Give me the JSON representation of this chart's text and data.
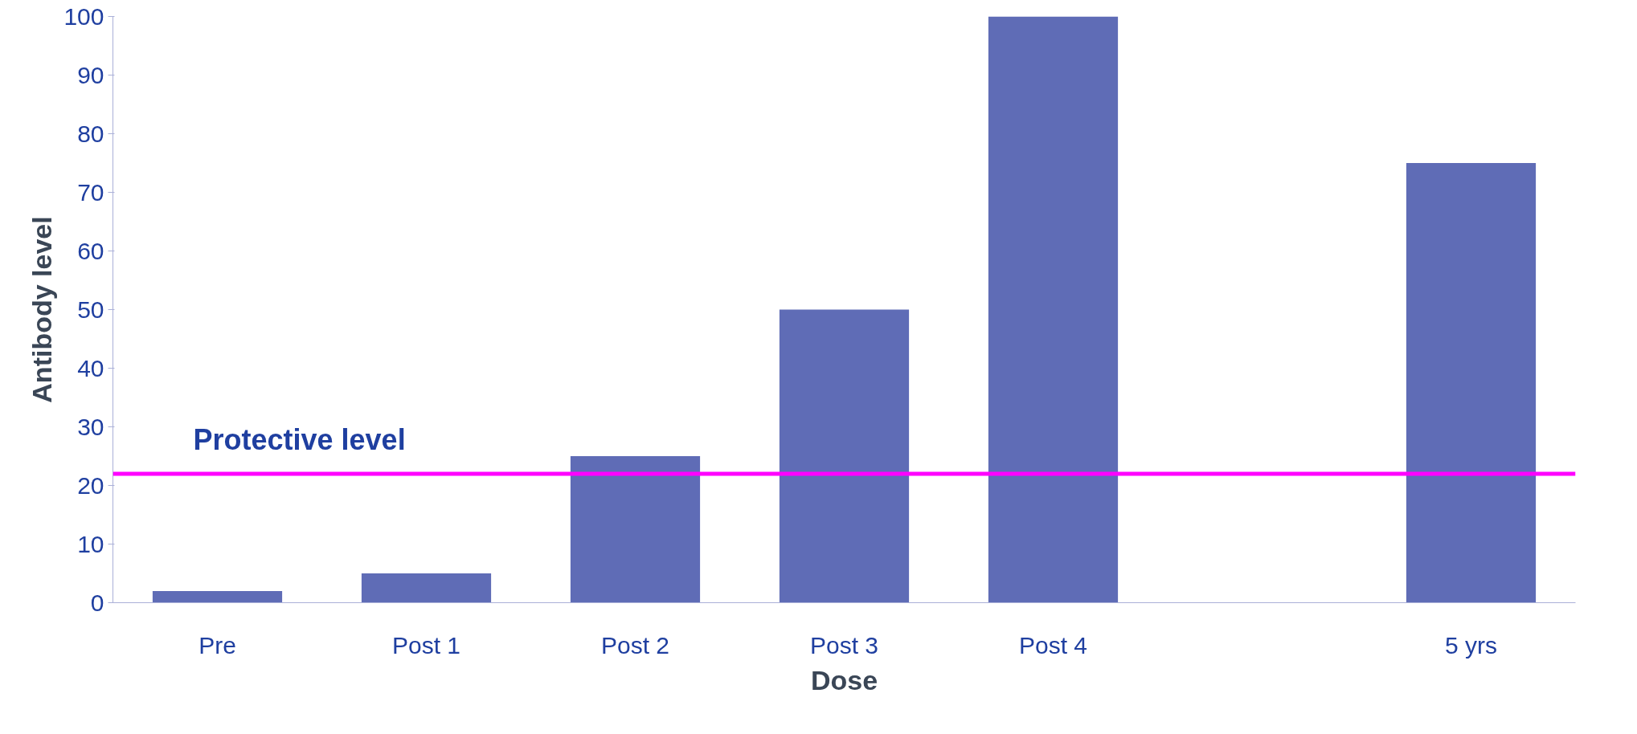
{
  "chart_data": {
    "type": "bar",
    "xlabel": "Dose",
    "ylabel": "Antibody level",
    "categories": [
      "Pre",
      "Post 1",
      "Post 2",
      "Post 3",
      "Post 4",
      null,
      "5 yrs"
    ],
    "values": [
      2,
      5,
      25,
      50,
      100,
      null,
      75
    ],
    "color": "#5f6cb6",
    "ylim": [
      0,
      100
    ],
    "yticks": [
      0,
      10,
      20,
      30,
      40,
      50,
      60,
      70,
      80,
      90,
      100
    ],
    "ref_lines": [
      {
        "axis": "y",
        "value": 22,
        "label": "Protective level",
        "color": "#ff00ff"
      }
    ],
    "grid": false
  }
}
